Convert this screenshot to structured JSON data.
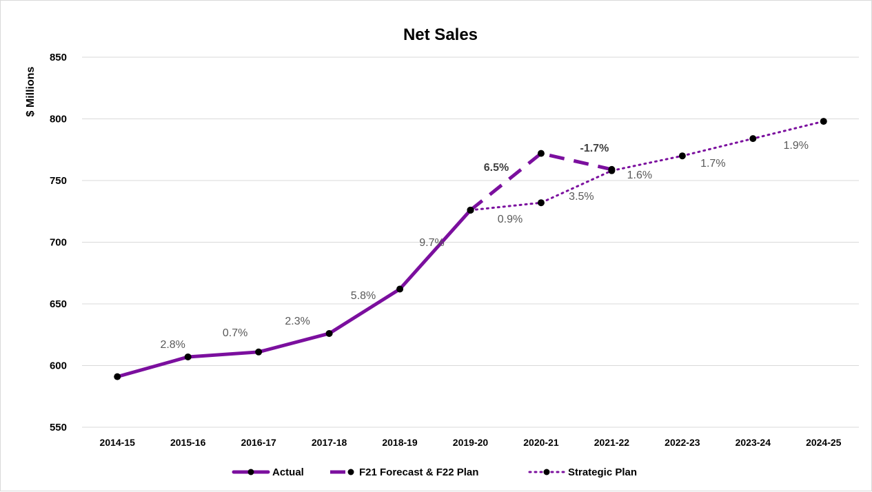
{
  "chart_data": {
    "type": "line",
    "title": "Net Sales",
    "ylabel": "$ Millions",
    "xlabel": "",
    "ylim": [
      550,
      850
    ],
    "yticks": [
      550,
      600,
      650,
      700,
      750,
      800,
      850
    ],
    "grid": true,
    "legend_position": "bottom",
    "categories": [
      "2014-15",
      "2015-16",
      "2016-17",
      "2017-18",
      "2018-19",
      "2019-20",
      "2020-21",
      "2021-22",
      "2022-23",
      "2023-24",
      "2024-25"
    ],
    "series": [
      {
        "name": "Actual",
        "style": "solid",
        "color": "#7b0f9e",
        "values": [
          591,
          607,
          611,
          626,
          662,
          726,
          null,
          null,
          null,
          null,
          null
        ]
      },
      {
        "name": "F21 Forecast & F22 Plan",
        "style": "dashed",
        "color": "#7b0f9e",
        "values": [
          null,
          null,
          null,
          null,
          null,
          726,
          772,
          759,
          null,
          null,
          null
        ]
      },
      {
        "name": "Strategic Plan",
        "style": "dotted",
        "color": "#7b0f9e",
        "values": [
          null,
          null,
          null,
          null,
          null,
          726,
          732,
          758,
          770,
          784,
          798
        ]
      }
    ],
    "annotations": [
      {
        "text": "2.8%",
        "category": "2015-16",
        "bold": false
      },
      {
        "text": "0.7%",
        "category": "2016-17",
        "bold": false
      },
      {
        "text": "2.3%",
        "category": "2017-18",
        "bold": false
      },
      {
        "text": "5.8%",
        "category": "2018-19",
        "bold": false
      },
      {
        "text": "9.7%",
        "category": "2019-20",
        "bold": false
      },
      {
        "text": "6.5%",
        "category": "2020-21",
        "bold": true
      },
      {
        "text": "-1.7%",
        "category": "2021-22",
        "bold": true
      },
      {
        "text": "0.9%",
        "category": "2020-21",
        "bold": false
      },
      {
        "text": "3.5%",
        "category": "2021-22",
        "bold": false
      },
      {
        "text": "1.6%",
        "category": "2022-23",
        "bold": false
      },
      {
        "text": "1.7%",
        "category": "2023-24",
        "bold": false
      },
      {
        "text": "1.9%",
        "category": "2024-25",
        "bold": false
      }
    ]
  }
}
